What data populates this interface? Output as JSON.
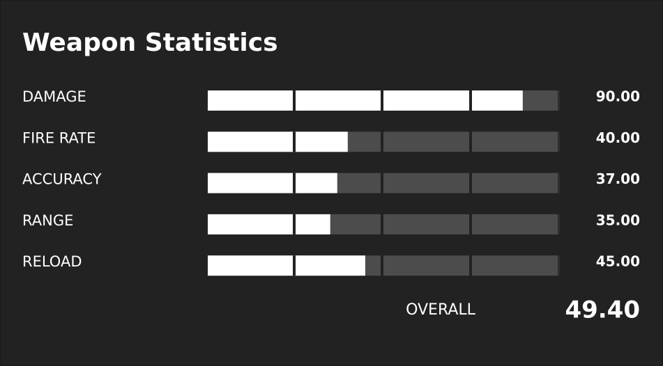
{
  "header": {
    "title": "Weapon Statistics"
  },
  "stats": {
    "xlim": [
      0,
      100
    ],
    "rows": [
      {
        "label": "DAMAGE",
        "value": 90,
        "value_label": "90.00"
      },
      {
        "label": "FIRE RATE",
        "value": 40,
        "value_label": "40.00"
      },
      {
        "label": "ACCURACY",
        "value": 37,
        "value_label": "37.00"
      },
      {
        "label": "RANGE",
        "value": 35,
        "value_label": "35.00"
      },
      {
        "label": "RELOAD",
        "value": 45,
        "value_label": "45.00"
      }
    ]
  },
  "overall": {
    "label": "OVERALL",
    "value": 49.4,
    "value_label": "49.40"
  }
}
